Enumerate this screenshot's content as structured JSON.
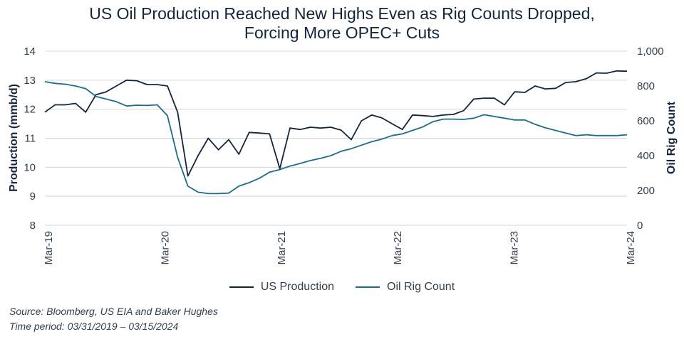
{
  "chart_data": {
    "type": "line",
    "title": "US Oil Production Reached New Highs Even as Rig Counts Dropped,",
    "title_line2": "Forcing More OPEC+ Cuts",
    "ylabel": "Production (mmb/d)",
    "y2label": "Oil Rig Count",
    "ylim": [
      8,
      14
    ],
    "y2lim": [
      0,
      1000
    ],
    "y_ticks": [
      "14",
      "13",
      "12",
      "11",
      "10",
      "9",
      "8"
    ],
    "y2_ticks": [
      "1,000",
      "800",
      "600",
      "400",
      "200",
      "0"
    ],
    "x_ticks": [
      "Mar-19",
      "Mar-20",
      "Mar-21",
      "Mar-22",
      "Mar-23",
      "Mar-24"
    ],
    "legend_position": "bottom",
    "series": [
      {
        "name": "US Production",
        "axis": "left",
        "color": "#14253a",
        "values": [
          11.9,
          12.15,
          12.15,
          12.2,
          11.9,
          12.5,
          12.6,
          12.8,
          13.0,
          12.98,
          12.85,
          12.85,
          12.8,
          11.9,
          9.7,
          10.4,
          11.0,
          10.6,
          10.95,
          10.45,
          11.2,
          11.18,
          11.15,
          9.95,
          11.35,
          11.3,
          11.38,
          11.35,
          11.38,
          11.28,
          10.95,
          11.6,
          11.8,
          11.7,
          11.5,
          11.3,
          11.8,
          11.78,
          11.75,
          11.8,
          11.82,
          11.95,
          12.35,
          12.38,
          12.38,
          12.15,
          12.6,
          12.58,
          12.8,
          12.7,
          12.72,
          12.92,
          12.95,
          13.05,
          13.25,
          13.24,
          13.32,
          13.31
        ]
      },
      {
        "name": "Oil Rig Count",
        "axis": "right",
        "color": "#1b6e8a",
        "values": [
          825,
          815,
          810,
          800,
          785,
          740,
          725,
          710,
          685,
          690,
          688,
          692,
          630,
          390,
          225,
          190,
          182,
          182,
          185,
          225,
          245,
          270,
          305,
          320,
          340,
          355,
          372,
          385,
          400,
          425,
          440,
          460,
          480,
          495,
          515,
          525,
          545,
          565,
          595,
          610,
          610,
          608,
          615,
          635,
          625,
          615,
          605,
          605,
          580,
          560,
          545,
          530,
          515,
          520,
          515,
          515,
          515,
          520
        ]
      }
    ]
  },
  "source_line1": "Source: Bloomberg, US EIA and Baker Hughes",
  "source_line2": "Time period: 03/31/2019 – 03/15/2024"
}
